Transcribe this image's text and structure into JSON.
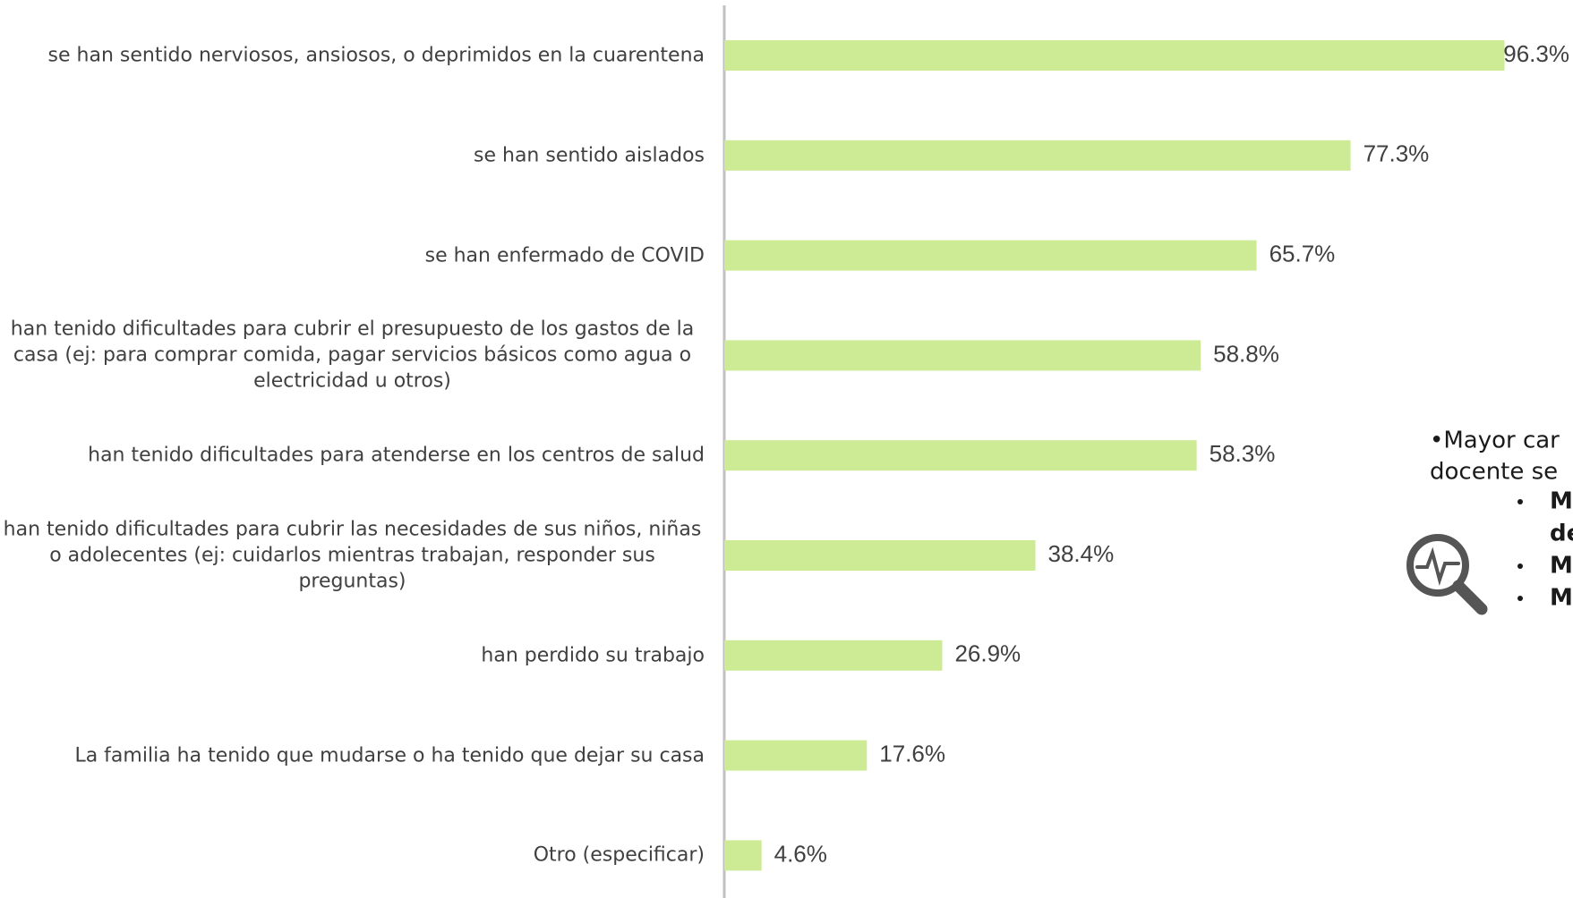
{
  "chart_data": {
    "type": "bar",
    "orientation": "horizontal",
    "categories": [
      "se han sentido nerviosos, ansiosos, o deprimidos en la cuarentena",
      "se han sentido aislados",
      "se han enfermado de COVID",
      "han tenido dificultades para cubrir el presupuesto de los gastos de la casa (ej: para comprar comida, pagar servicios básicos como agua o electricidad u otros)",
      "han tenido dificultades para atenderse en los centros de salud",
      "han tenido dificultades para cubrir las necesidades de sus niños, niñas o adolecentes (ej: cuidarlos mientras trabajan, responder sus preguntas)",
      "han perdido su trabajo",
      "La familia ha tenido que mudarse o ha tenido que dejar su casa",
      "Otro (especificar)"
    ],
    "values": [
      96.3,
      77.3,
      65.7,
      58.8,
      58.3,
      38.4,
      26.9,
      17.6,
      4.6
    ],
    "value_labels": [
      "96.3%",
      "77.3%",
      "65.7%",
      "58.8%",
      "58.3%",
      "38.4%",
      "26.9%",
      "17.6%",
      "4.6%"
    ],
    "color": "#cdeb95",
    "xlim": [
      0,
      100
    ]
  },
  "annotation": {
    "lines": [
      "•Mayor car",
      "docente se"
    ],
    "bullets": [
      "M",
      "de",
      "M",
      "M"
    ]
  }
}
